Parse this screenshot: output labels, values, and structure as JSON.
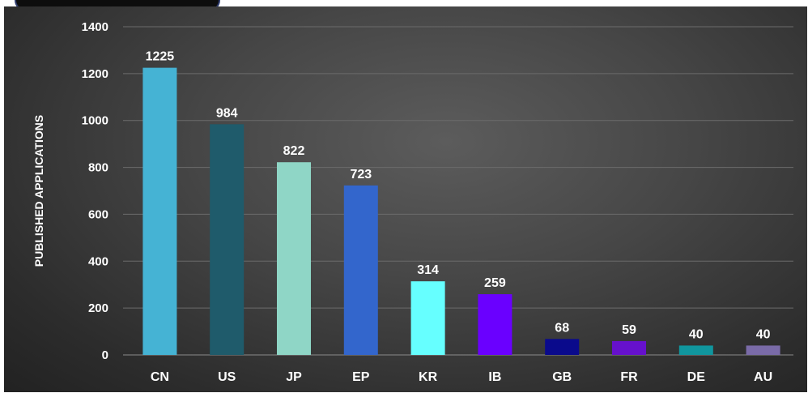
{
  "chart_data": {
    "type": "bar",
    "title": "",
    "xlabel": "",
    "ylabel": "PUBLISHED APPLICATIONS",
    "ylim": [
      0,
      1400
    ],
    "yticks": [
      0,
      200,
      400,
      600,
      800,
      1000,
      1200,
      1400
    ],
    "grid": true,
    "legend": "none",
    "categories": [
      "CN",
      "US",
      "JP",
      "EP",
      "KR",
      "IB",
      "GB",
      "FR",
      "DE",
      "AU"
    ],
    "values": [
      1225,
      984,
      822,
      723,
      314,
      259,
      68,
      59,
      40,
      40
    ],
    "colors": [
      "#45b3d4",
      "#1f5b6b",
      "#8fd6c6",
      "#3366cc",
      "#66ffff",
      "#6a00ff",
      "#0a0a8c",
      "#6611cc",
      "#10969e",
      "#7a6ba8"
    ]
  }
}
